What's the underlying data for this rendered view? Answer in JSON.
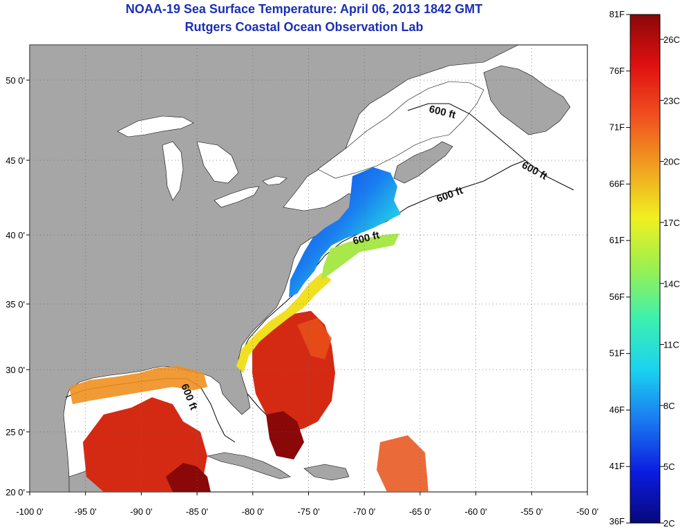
{
  "title": "NOAA-19 Sea Surface Temperature:  April 06, 2013 1842 GMT",
  "subtitle": "Rutgers Coastal Ocean Observation Lab",
  "x_ticks": [
    "-100 0'",
    "-95 0'",
    "-90 0'",
    "-85 0'",
    "-80 0'",
    "-75 0'",
    "-70 0'",
    "-65 0'",
    "-60 0'",
    "-55 0'",
    "-50 0'"
  ],
  "y_ticks": [
    "20 0'",
    "25 0'",
    "30 0'",
    "35 0'",
    "40 0'",
    "45 0'",
    "50 0'"
  ],
  "contour_labels": [
    "600 ft",
    "600 ft",
    "600 ft",
    "600 ft",
    "600 ft"
  ],
  "colorbar": {
    "fahrenheit": [
      "81F",
      "76F",
      "71F",
      "66F",
      "61F",
      "56F",
      "51F",
      "46F",
      "41F",
      "36F"
    ],
    "celsius": [
      "26C",
      "23C",
      "20C",
      "17C",
      "14C",
      "11C",
      "8C",
      "5C",
      "2C"
    ],
    "colors": [
      "#08087a",
      "#0a1de0",
      "#1a78f0",
      "#1ad2f0",
      "#3cf0b0",
      "#9af050",
      "#f0f020",
      "#f0a020",
      "#f05020",
      "#e01010",
      "#8a0808"
    ]
  },
  "colors": {
    "land": "#a6a6a6",
    "ocean": "#ffffff",
    "title": "#1a2fb5"
  }
}
